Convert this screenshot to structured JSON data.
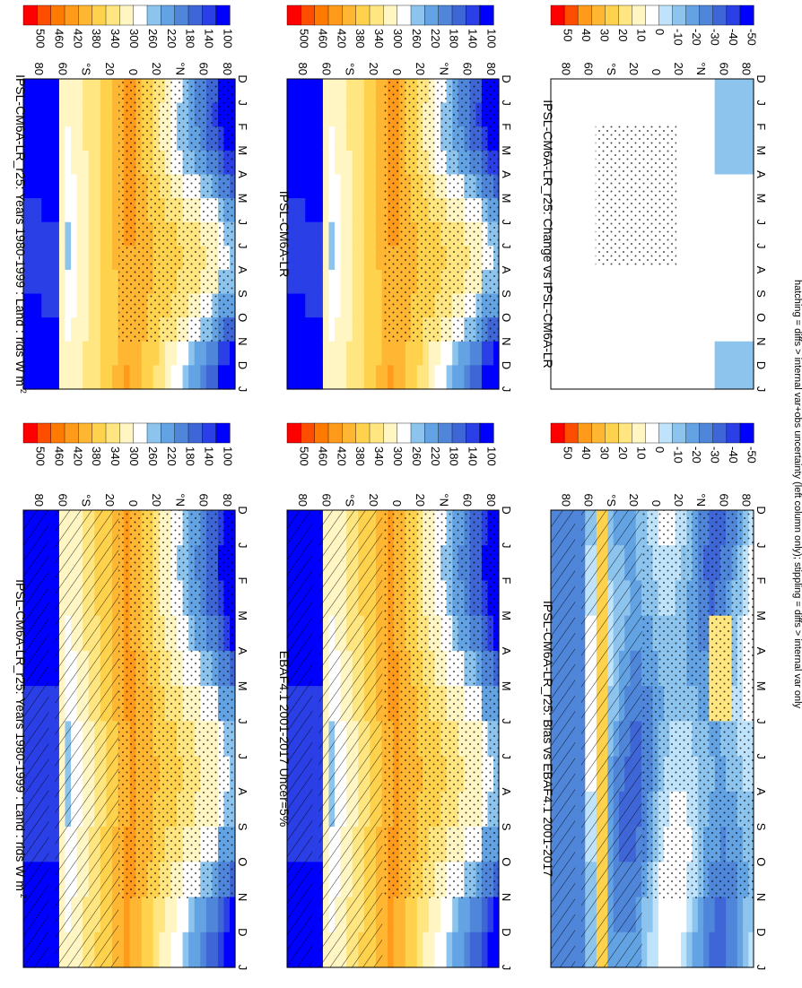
{
  "figure": {
    "footnote": "hatching = diffs > internal var+obs uncertainty (left column only); stippling = diffs > internal var only"
  },
  "colors": {
    "abs_scale": [
      "#0000ff",
      "#2b3fe6",
      "#3e66d6",
      "#4f86d9",
      "#63a3e3",
      "#8cc4ee",
      "#ffffff",
      "#fff6c4",
      "#ffe680",
      "#ffd24d",
      "#ffb733",
      "#ff9a1a",
      "#ff7a00",
      "#ff4d00",
      "#ff0000"
    ],
    "diff_scale": [
      "#0000ff",
      "#2b3fe6",
      "#3e66d6",
      "#4f86d9",
      "#63a3e3",
      "#8cc4ee",
      "#bfe3fb",
      "#ffffff",
      "#fff6c4",
      "#ffe680",
      "#ffd24d",
      "#ffb733",
      "#ff9a1a",
      "#ff4d00",
      "#ff0000"
    ]
  },
  "chart_data": [
    {
      "type": "heatmap",
      "panel": "top-left",
      "title": "IPSL-CM6A-LR_r25: Years 1980-1999 : Land : rlds W m",
      "title_sup": "-2",
      "months": [
        "D",
        "J",
        "F",
        "M",
        "A",
        "M",
        "J",
        "J",
        "A",
        "S",
        "O",
        "N",
        "D",
        "J"
      ],
      "lat_ticks": [
        "80",
        "60",
        "°N",
        "20",
        "0",
        "20",
        "°S",
        "60",
        "80"
      ],
      "colorbar_ticks": [
        "500",
        "460",
        "420",
        "380",
        "340",
        "300",
        "260",
        "220",
        "180",
        "140",
        "100"
      ],
      "hatching": true,
      "stippling": true
    },
    {
      "type": "heatmap",
      "panel": "top-right",
      "title": "IPSL-CM6A-LR_r25: Years 1980-1999 : Land : rlds W m",
      "title_sup": "-2",
      "months": [
        "D",
        "J",
        "F",
        "M",
        "A",
        "M",
        "J",
        "J",
        "A",
        "S",
        "O",
        "N",
        "D",
        "J"
      ],
      "lat_ticks": [
        "80",
        "60",
        "°N",
        "20",
        "0",
        "20",
        "°S",
        "60",
        "80"
      ],
      "colorbar_ticks": [
        "500",
        "460",
        "420",
        "380",
        "340",
        "300",
        "260",
        "220",
        "180",
        "140",
        "100"
      ],
      "hatching": false,
      "stippling": true
    },
    {
      "type": "heatmap",
      "panel": "middle-left",
      "title": "EBAF4.1 2001-2017 Uncer=5%",
      "title_sup": "",
      "months": [
        "D",
        "J",
        "F",
        "M",
        "A",
        "M",
        "J",
        "J",
        "A",
        "S",
        "O",
        "N",
        "D",
        "J"
      ],
      "lat_ticks": [
        "80",
        "60",
        "°N",
        "20",
        "0",
        "20",
        "°S",
        "60",
        "80"
      ],
      "colorbar_ticks": [
        "500",
        "460",
        "420",
        "380",
        "340",
        "300",
        "260",
        "220",
        "180",
        "140",
        "100"
      ],
      "hatching": true,
      "stippling": true
    },
    {
      "type": "heatmap",
      "panel": "middle-right",
      "title": "IPSL-CM6A-LR",
      "title_sup": "",
      "months": [
        "D",
        "J",
        "F",
        "M",
        "A",
        "M",
        "J",
        "J",
        "A",
        "S",
        "O",
        "N",
        "D",
        "J"
      ],
      "lat_ticks": [
        "80",
        "60",
        "°N",
        "20",
        "0",
        "20",
        "°S",
        "60",
        "80"
      ],
      "colorbar_ticks": [
        "500",
        "460",
        "420",
        "380",
        "340",
        "300",
        "260",
        "220",
        "180",
        "140",
        "100"
      ],
      "hatching": false,
      "stippling": true
    },
    {
      "type": "heatmap",
      "panel": "bottom-left",
      "title": "IPSL-CM6A-LR_r25: Bias vs EBAF4.1 2001-2017",
      "title_sup": "",
      "months": [
        "D",
        "J",
        "F",
        "M",
        "A",
        "M",
        "J",
        "J",
        "A",
        "S",
        "O",
        "N",
        "D",
        "J"
      ],
      "lat_ticks": [
        "80",
        "60",
        "°N",
        "20",
        "0",
        "20",
        "°S",
        "60",
        "80"
      ],
      "colorbar_ticks": [
        "50",
        "40",
        "30",
        "20",
        "10",
        "0",
        "-10",
        "-20",
        "-30",
        "-40",
        "-50"
      ],
      "hatching": true,
      "stippling": true
    },
    {
      "type": "heatmap",
      "panel": "bottom-right",
      "title": "IPSL-CM6A-LR_r25: Change vs IPSL-CM6A-LR",
      "title_sup": "",
      "months": [
        "D",
        "J",
        "F",
        "M",
        "A",
        "M",
        "J",
        "J",
        "A",
        "S",
        "O",
        "N",
        "D",
        "J"
      ],
      "lat_ticks": [
        "80",
        "60",
        "°N",
        "20",
        "0",
        "20",
        "°S",
        "60",
        "80"
      ],
      "colorbar_ticks": [
        "50",
        "40",
        "30",
        "20",
        "10",
        "0",
        "-10",
        "-20",
        "-30",
        "-40",
        "-50"
      ],
      "hatching": false,
      "stippling": true
    }
  ]
}
